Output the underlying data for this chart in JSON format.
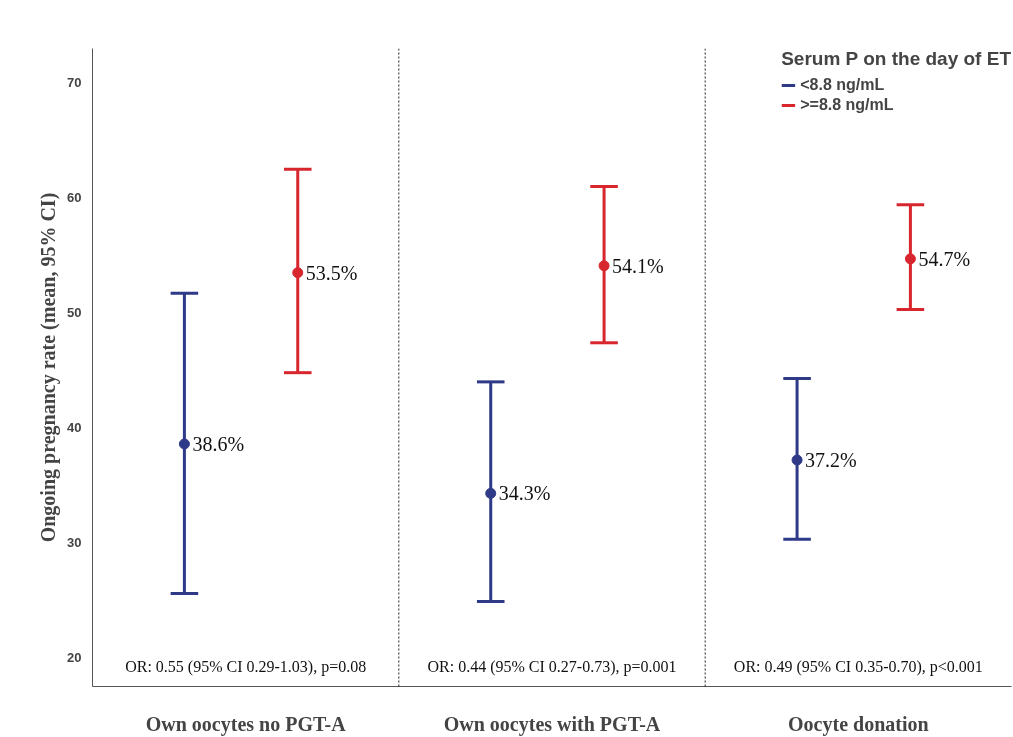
{
  "chart_data": {
    "type": "scatter",
    "ylabel": "Ongoing pregnancy rate (mean, 95% CI)",
    "legend_title": "Serum P on the day of ET",
    "categories": [
      "Own oocytes no PGT-A",
      "Own oocytes with PGT-A",
      "Oocyte donation"
    ],
    "series": [
      {
        "name": "<8.8 ng/mL",
        "color": "#2e3a87",
        "values": [
          38.6,
          34.3,
          37.2
        ],
        "errors": [
          [
            25.6,
            51.7
          ],
          [
            24.9,
            44.0
          ],
          [
            30.3,
            44.3
          ]
        ],
        "value_labels": [
          "38.6%",
          "34.3%",
          "37.2%"
        ]
      },
      {
        "name": ">=8.8 ng/mL",
        "color": "#d8262e",
        "values": [
          53.5,
          54.1,
          54.7
        ],
        "errors": [
          [
            44.8,
            62.5
          ],
          [
            47.4,
            61.0
          ],
          [
            50.3,
            59.4
          ]
        ],
        "value_labels": [
          "53.5%",
          "54.1%",
          "54.7%"
        ]
      }
    ],
    "ylim": [
      17.5,
      73
    ],
    "yticks": [
      20,
      30,
      40,
      50,
      60,
      70
    ],
    "grid": false,
    "legend": "top right",
    "marker": "circle",
    "annotations": [
      "OR: 0.55 (95% CI 0.29-1.03), p=0.08",
      "OR: 0.44 (95% CI 0.27-0.73), p=0.001",
      "OR: 0.49 (95% CI 0.35-0.70), p<0.001"
    ]
  }
}
